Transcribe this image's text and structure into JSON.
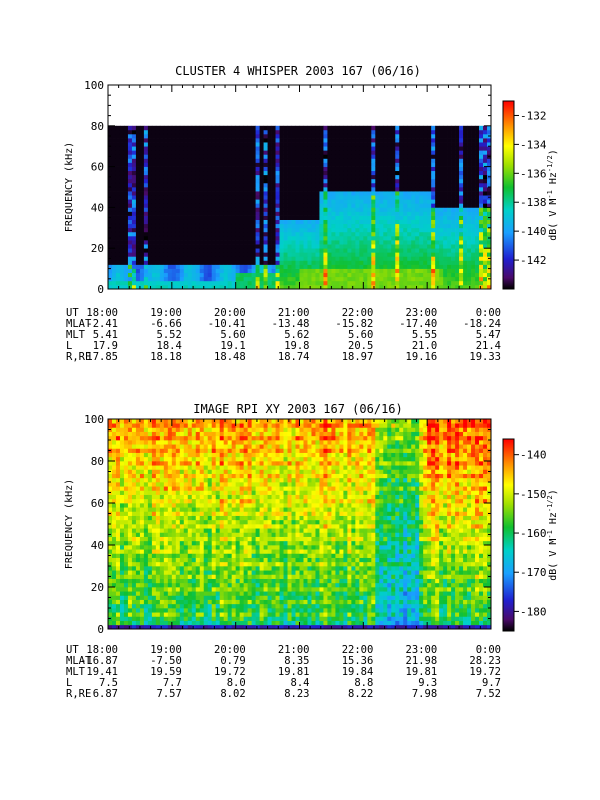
{
  "chart_data": [
    {
      "type": "heatmap",
      "title": "CLUSTER 4 WHISPER 2003 167 (06/16)",
      "ylabel": "FREQUENCY (kHz)",
      "ylim": [
        0,
        100
      ],
      "y_ticks": [
        "0",
        "20",
        "40",
        "60",
        "80",
        "100"
      ],
      "x_ticks": [
        "18:00",
        "19:00",
        "20:00",
        "21:00",
        "22:00",
        "23:00",
        "0:00"
      ],
      "colorbar": {
        "label": "dB( V M⁻¹ Hz⁻¹ᐟ²)",
        "label_main": "dB( V M",
        "label_sup1": "-1",
        "label_mid": " Hz",
        "label_sup2": "-1/2",
        "label_end": ")",
        "range": [
          -144,
          -131
        ],
        "ticks": [
          "-132",
          "-134",
          "-136",
          "-138",
          "-140",
          "-142"
        ],
        "tick_values": [
          -132,
          -134,
          -136,
          -138,
          -140,
          -142
        ],
        "colormap": "rainbow"
      },
      "data_ceiling_khz": 80,
      "ephemeris": {
        "rows": [
          {
            "label": "UT",
            "values": [
              "18:00",
              "19:00",
              "20:00",
              "21:00",
              "22:00",
              "23:00",
              "0:00"
            ]
          },
          {
            "label": "MLAT",
            "values": [
              "-2.41",
              "-6.66",
              "-10.41",
              "-13.48",
              "-15.82",
              "-17.40",
              "-18.24"
            ]
          },
          {
            "label": "MLT",
            "values": [
              "5.41",
              "5.52",
              "5.60",
              "5.62",
              "5.60",
              "5.55",
              "5.47"
            ]
          },
          {
            "label": "L",
            "values": [
              "17.9",
              "18.4",
              "19.1",
              "19.8",
              "20.5",
              "21.0",
              "21.4"
            ]
          },
          {
            "label": "R,RE",
            "values": [
              "17.85",
              "18.18",
              "18.48",
              "18.74",
              "18.97",
              "19.16",
              "19.33"
            ]
          }
        ]
      }
    },
    {
      "type": "heatmap",
      "title": "IMAGE RPI XY 2003 167 (06/16)",
      "ylabel": "FREQUENCY (kHz)",
      "ylim": [
        0,
        100
      ],
      "y_ticks": [
        "0",
        "20",
        "40",
        "60",
        "80",
        "100"
      ],
      "x_ticks": [
        "18:00",
        "19:00",
        "20:00",
        "21:00",
        "22:00",
        "23:00",
        "0:00"
      ],
      "colorbar": {
        "label_main": "dB( V M",
        "label_sup1": "-1",
        "label_mid": " Hz",
        "label_sup2": "-1/2",
        "label_end": ")",
        "range": [
          -185,
          -136
        ],
        "ticks": [
          "-140",
          "-150",
          "-160",
          "-170",
          "-180"
        ],
        "tick_values": [
          -140,
          -150,
          -160,
          -170,
          -180
        ],
        "colormap": "rainbow"
      },
      "ephemeris": {
        "rows": [
          {
            "label": "UT",
            "values": [
              "18:00",
              "19:00",
              "20:00",
              "21:00",
              "22:00",
              "23:00",
              "0:00"
            ]
          },
          {
            "label": "MLAT",
            "values": [
              "-16.87",
              "-7.50",
              "0.79",
              "8.35",
              "15.36",
              "21.98",
              "28.23"
            ]
          },
          {
            "label": "MLT",
            "values": [
              "19.41",
              "19.59",
              "19.72",
              "19.81",
              "19.84",
              "19.81",
              "19.72"
            ]
          },
          {
            "label": "L",
            "values": [
              "7.5",
              "7.7",
              "8.0",
              "8.4",
              "8.8",
              "9.3",
              "9.7"
            ]
          },
          {
            "label": "R,RE",
            "values": [
              "6.87",
              "7.57",
              "8.02",
              "8.23",
              "8.22",
              "7.98",
              "7.52"
            ]
          }
        ]
      }
    }
  ]
}
